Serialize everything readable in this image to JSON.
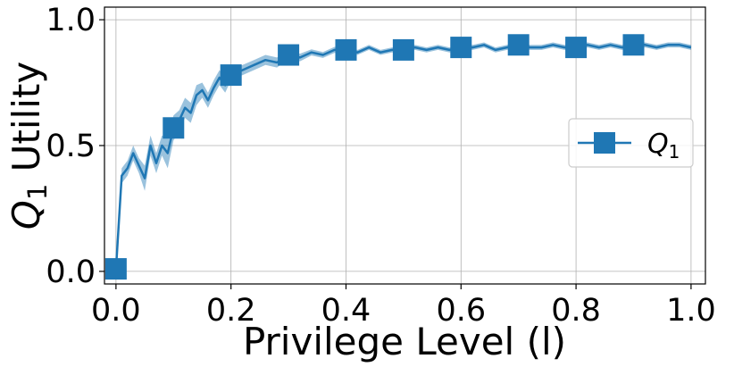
{
  "chart_data": {
    "type": "line",
    "xlabel": "Privilege Level (l)",
    "ylabel_main": "Q",
    "ylabel_sub": "1",
    "ylabel_rest": " Utility",
    "xlim": [
      -0.02,
      1.025
    ],
    "ylim": [
      -0.05,
      1.05
    ],
    "xticks": [
      0.0,
      0.2,
      0.4,
      0.6,
      0.8,
      1.0
    ],
    "xtick_labels": [
      "0.0",
      "0.2",
      "0.4",
      "0.6",
      "0.8",
      "1.0"
    ],
    "yticks": [
      0.0,
      0.5,
      1.0
    ],
    "ytick_labels": [
      "0.0",
      "0.5",
      "1.0"
    ],
    "grid": true,
    "legend": {
      "placement": "center-right",
      "label_main": "Q",
      "label_sub": "1"
    },
    "colors": {
      "line": "#1f77b4",
      "band": "#1f77b4",
      "grid": "#b0b0b0",
      "axes": "#000000"
    },
    "series": [
      {
        "name": "Q1",
        "x": [
          0.0,
          0.01,
          0.02,
          0.03,
          0.04,
          0.05,
          0.06,
          0.07,
          0.08,
          0.09,
          0.1,
          0.11,
          0.12,
          0.13,
          0.14,
          0.15,
          0.16,
          0.17,
          0.18,
          0.19,
          0.2,
          0.22,
          0.24,
          0.26,
          0.28,
          0.3,
          0.32,
          0.34,
          0.36,
          0.38,
          0.4,
          0.42,
          0.44,
          0.46,
          0.48,
          0.5,
          0.52,
          0.54,
          0.56,
          0.58,
          0.6,
          0.62,
          0.64,
          0.66,
          0.68,
          0.7,
          0.72,
          0.74,
          0.76,
          0.78,
          0.8,
          0.82,
          0.84,
          0.86,
          0.88,
          0.9,
          0.92,
          0.94,
          0.96,
          0.98,
          1.0
        ],
        "y": [
          0.01,
          0.38,
          0.41,
          0.47,
          0.42,
          0.37,
          0.5,
          0.43,
          0.5,
          0.47,
          0.57,
          0.6,
          0.65,
          0.63,
          0.7,
          0.72,
          0.68,
          0.73,
          0.77,
          0.74,
          0.78,
          0.8,
          0.82,
          0.84,
          0.83,
          0.86,
          0.85,
          0.87,
          0.86,
          0.88,
          0.88,
          0.87,
          0.89,
          0.87,
          0.88,
          0.88,
          0.89,
          0.88,
          0.89,
          0.88,
          0.89,
          0.89,
          0.9,
          0.88,
          0.89,
          0.9,
          0.89,
          0.89,
          0.9,
          0.89,
          0.89,
          0.9,
          0.89,
          0.9,
          0.89,
          0.9,
          0.9,
          0.89,
          0.9,
          0.9,
          0.89
        ],
        "band": [
          0.0,
          0.03,
          0.03,
          0.03,
          0.03,
          0.05,
          0.04,
          0.04,
          0.04,
          0.06,
          0.05,
          0.04,
          0.04,
          0.04,
          0.04,
          0.03,
          0.03,
          0.03,
          0.03,
          0.03,
          0.02,
          0.02,
          0.02,
          0.02,
          0.02,
          0.015,
          0.015,
          0.012,
          0.012,
          0.012,
          0.012,
          0.01,
          0.01,
          0.01,
          0.01,
          0.01,
          0.01,
          0.01,
          0.01,
          0.01,
          0.01,
          0.01,
          0.01,
          0.01,
          0.01,
          0.01,
          0.01,
          0.01,
          0.01,
          0.01,
          0.01,
          0.01,
          0.01,
          0.01,
          0.01,
          0.01,
          0.01,
          0.01,
          0.01,
          0.01,
          0.01
        ],
        "marker_x": [
          0.0,
          0.1,
          0.2,
          0.3,
          0.4,
          0.5,
          0.6,
          0.7,
          0.8,
          0.9
        ],
        "marker_y": [
          0.01,
          0.57,
          0.78,
          0.86,
          0.88,
          0.88,
          0.89,
          0.9,
          0.89,
          0.9
        ]
      }
    ]
  }
}
